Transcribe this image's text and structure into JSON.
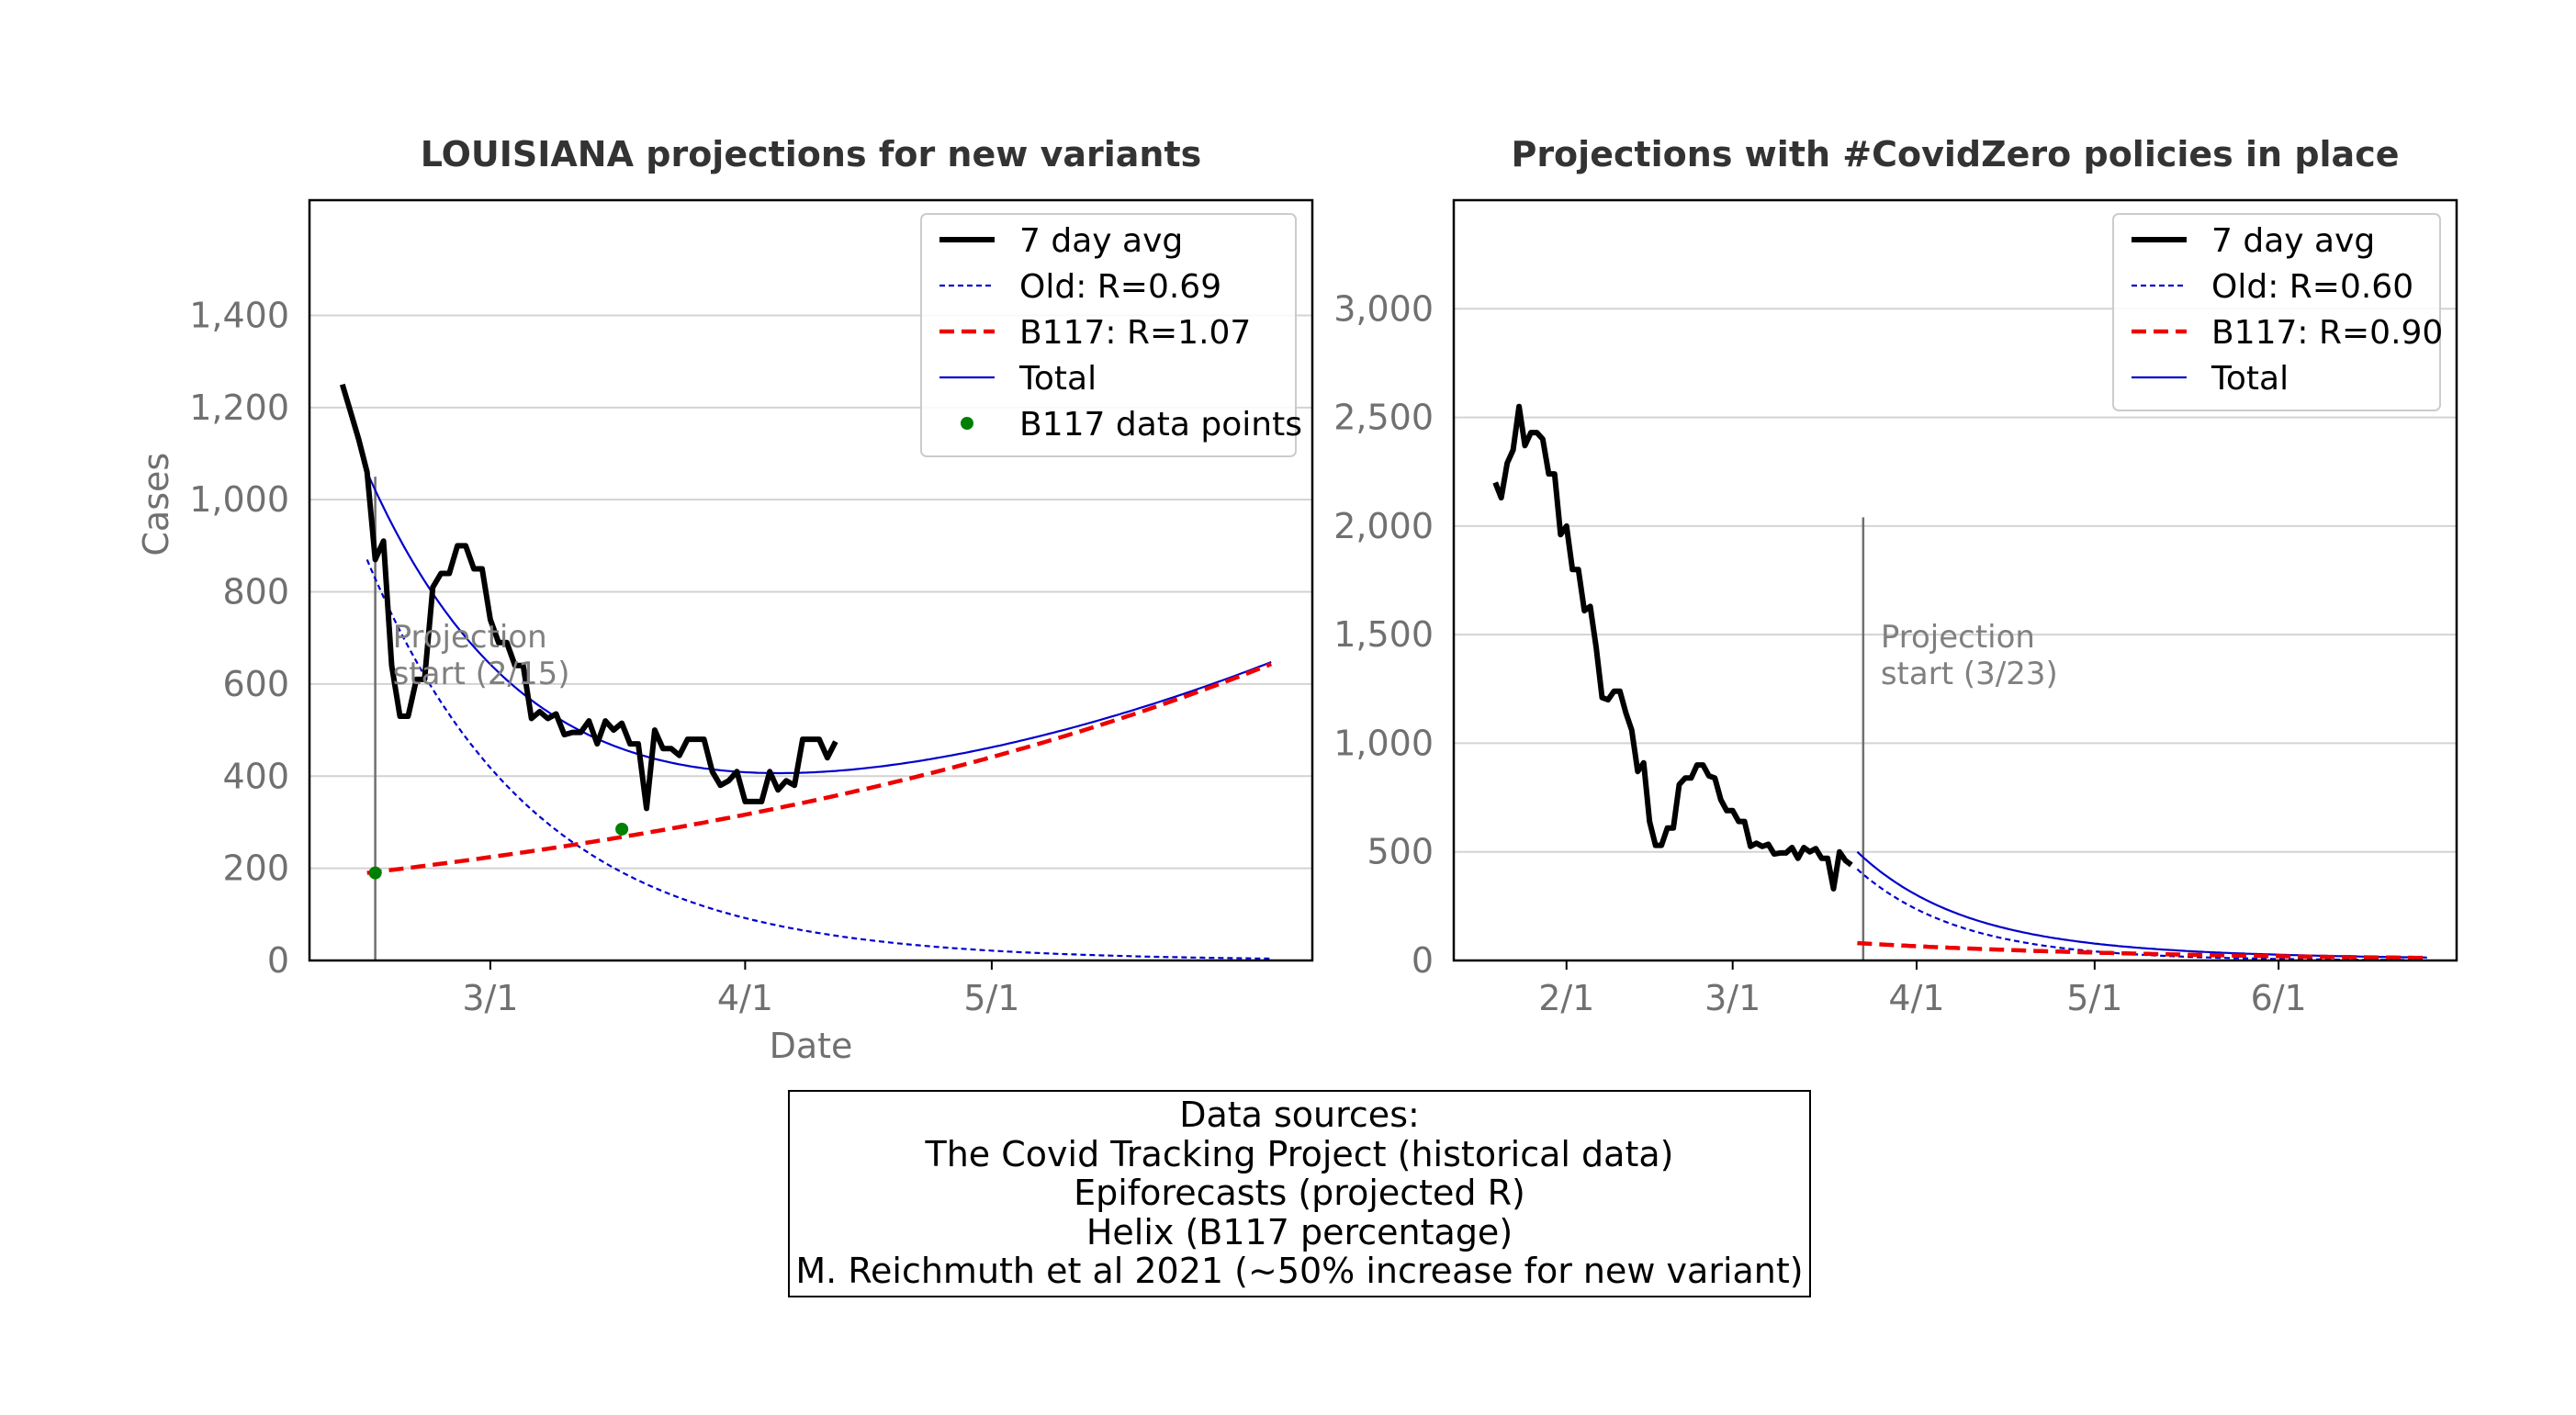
{
  "chart_data": [
    {
      "type": "line",
      "title": "LOUISIANA projections for new variants",
      "xlabel": "Date",
      "ylabel": "Cases",
      "ylim": [
        0,
        1650
      ],
      "yticks": [
        0,
        200,
        400,
        600,
        800,
        1000,
        1200,
        1400
      ],
      "ytick_labels": [
        "0",
        "200",
        "400",
        "600",
        "800",
        "1,000",
        "1,200",
        "1,400"
      ],
      "xlim": [
        "2021-02-07",
        "2021-06-09"
      ],
      "xticks": [
        "2021-03-01",
        "2021-04-01",
        "2021-05-01"
      ],
      "xtick_labels": [
        "3/1",
        "4/1",
        "5/1"
      ],
      "grid": "horizontal",
      "legend_position": "top-right",
      "legend": [
        "7 day avg",
        "Old: R=0.69",
        "B117: R=1.07",
        "Total",
        "B117 data points"
      ],
      "annotation": {
        "text_line1": "Projection",
        "text_line2": "start (2/15)",
        "x": "2021-02-15"
      },
      "series": [
        {
          "name": "7 day avg",
          "color": "#000000",
          "points": [
            [
              "2021-02-11",
              1250
            ],
            [
              "2021-02-12",
              1190
            ],
            [
              "2021-02-13",
              1130
            ],
            [
              "2021-02-14",
              1060
            ],
            [
              "2021-02-15",
              870
            ],
            [
              "2021-02-16",
              910
            ],
            [
              "2021-02-17",
              640
            ],
            [
              "2021-02-18",
              530
            ],
            [
              "2021-02-19",
              530
            ],
            [
              "2021-02-20",
              610
            ],
            [
              "2021-02-21",
              610
            ],
            [
              "2021-02-22",
              810
            ],
            [
              "2021-02-23",
              840
            ],
            [
              "2021-02-24",
              840
            ],
            [
              "2021-02-25",
              900
            ],
            [
              "2021-02-26",
              900
            ],
            [
              "2021-02-27",
              850
            ],
            [
              "2021-02-28",
              850
            ],
            [
              "2021-03-01",
              740
            ],
            [
              "2021-03-02",
              690
            ],
            [
              "2021-03-03",
              690
            ],
            [
              "2021-03-04",
              640
            ],
            [
              "2021-03-05",
              640
            ],
            [
              "2021-03-06",
              525
            ],
            [
              "2021-03-07",
              540
            ],
            [
              "2021-03-08",
              525
            ],
            [
              "2021-03-09",
              535
            ],
            [
              "2021-03-10",
              490
            ],
            [
              "2021-03-11",
              495
            ],
            [
              "2021-03-12",
              495
            ],
            [
              "2021-03-13",
              520
            ],
            [
              "2021-03-14",
              470
            ],
            [
              "2021-03-15",
              520
            ],
            [
              "2021-03-16",
              500
            ],
            [
              "2021-03-17",
              515
            ],
            [
              "2021-03-18",
              470
            ],
            [
              "2021-03-19",
              470
            ],
            [
              "2021-03-20",
              330
            ],
            [
              "2021-03-21",
              500
            ],
            [
              "2021-03-22",
              460
            ],
            [
              "2021-03-23",
              460
            ],
            [
              "2021-03-24",
              445
            ],
            [
              "2021-03-25",
              480
            ],
            [
              "2021-03-26",
              480
            ],
            [
              "2021-03-27",
              480
            ],
            [
              "2021-03-28",
              410
            ],
            [
              "2021-03-29",
              380
            ],
            [
              "2021-03-30",
              390
            ],
            [
              "2021-03-31",
              410
            ],
            [
              "2021-04-01",
              345
            ],
            [
              "2021-04-02",
              345
            ],
            [
              "2021-04-03",
              345
            ],
            [
              "2021-04-04",
              410
            ],
            [
              "2021-04-05",
              370
            ],
            [
              "2021-04-06",
              390
            ],
            [
              "2021-04-07",
              380
            ],
            [
              "2021-04-08",
              480
            ],
            [
              "2021-04-09",
              480
            ],
            [
              "2021-04-10",
              480
            ],
            [
              "2021-04-11",
              440
            ],
            [
              "2021-04-12",
              475
            ]
          ]
        },
        {
          "name": "Old: R=0.69",
          "color": "#0000cc",
          "style": "dotted",
          "model": {
            "start": "2021-02-14",
            "end": "2021-06-04",
            "v0": 870,
            "halflife_days": 14.2
          }
        },
        {
          "name": "B117: R=1.07",
          "color": "#ee0000",
          "style": "dashed",
          "model": {
            "start": "2021-02-14",
            "end": "2021-06-04",
            "v0": 190,
            "doubling_days": 62.5
          }
        },
        {
          "name": "Total",
          "color": "#0000cc",
          "style": "solid",
          "sum_of": [
            "Old: R=0.69",
            "B117: R=1.07"
          ]
        },
        {
          "name": "B117 data points",
          "color": "#008000",
          "style": "points",
          "points": [
            [
              "2021-02-15",
              190
            ],
            [
              "2021-03-17",
              285
            ]
          ]
        }
      ]
    },
    {
      "type": "line",
      "title": "Projections with #CovidZero policies in place",
      "xlabel": "",
      "ylabel": "",
      "ylim": [
        0,
        3500
      ],
      "yticks": [
        0,
        500,
        1000,
        1500,
        2000,
        2500,
        3000
      ],
      "ytick_labels": [
        "0",
        "500",
        "1,000",
        "1,500",
        "2,000",
        "2,500",
        "3,000"
      ],
      "xlim": [
        "2021-01-13",
        "2021-07-01"
      ],
      "xticks": [
        "2021-02-01",
        "2021-03-01",
        "2021-04-01",
        "2021-05-01",
        "2021-06-01"
      ],
      "xtick_labels": [
        "2/1",
        "3/1",
        "4/1",
        "5/1",
        "6/1"
      ],
      "grid": "horizontal",
      "legend_position": "top-right",
      "legend": [
        "7 day avg",
        "Old: R=0.60",
        "B117: R=0.90",
        "Total"
      ],
      "annotation": {
        "text_line1": "Projection",
        "text_line2": "start (3/23)",
        "x": "2021-03-23"
      },
      "series": [
        {
          "name": "7 day avg",
          "color": "#000000",
          "points": [
            [
              "2021-01-20",
              2200
            ],
            [
              "2021-01-21",
              2130
            ],
            [
              "2021-01-22",
              2290
            ],
            [
              "2021-01-23",
              2350
            ],
            [
              "2021-01-24",
              2550
            ],
            [
              "2021-01-25",
              2370
            ],
            [
              "2021-01-26",
              2430
            ],
            [
              "2021-01-27",
              2430
            ],
            [
              "2021-01-28",
              2400
            ],
            [
              "2021-01-29",
              2240
            ],
            [
              "2021-01-30",
              2240
            ],
            [
              "2021-01-31",
              1960
            ],
            [
              "2021-02-01",
              2000
            ],
            [
              "2021-02-02",
              1800
            ],
            [
              "2021-02-03",
              1800
            ],
            [
              "2021-02-04",
              1610
            ],
            [
              "2021-02-05",
              1630
            ],
            [
              "2021-02-06",
              1440
            ],
            [
              "2021-02-07",
              1210
            ],
            [
              "2021-02-08",
              1200
            ],
            [
              "2021-02-09",
              1240
            ],
            [
              "2021-02-10",
              1240
            ],
            [
              "2021-02-11",
              1140
            ],
            [
              "2021-02-12",
              1060
            ],
            [
              "2021-02-13",
              870
            ],
            [
              "2021-02-14",
              910
            ],
            [
              "2021-02-15",
              640
            ],
            [
              "2021-02-16",
              530
            ],
            [
              "2021-02-17",
              530
            ],
            [
              "2021-02-18",
              610
            ],
            [
              "2021-02-19",
              610
            ],
            [
              "2021-02-20",
              810
            ],
            [
              "2021-02-21",
              840
            ],
            [
              "2021-02-22",
              840
            ],
            [
              "2021-02-23",
              900
            ],
            [
              "2021-02-24",
              900
            ],
            [
              "2021-02-25",
              850
            ],
            [
              "2021-02-26",
              840
            ],
            [
              "2021-02-27",
              740
            ],
            [
              "2021-02-28",
              690
            ],
            [
              "2021-03-01",
              690
            ],
            [
              "2021-03-02",
              640
            ],
            [
              "2021-03-03",
              640
            ],
            [
              "2021-03-04",
              525
            ],
            [
              "2021-03-05",
              540
            ],
            [
              "2021-03-06",
              525
            ],
            [
              "2021-03-07",
              535
            ],
            [
              "2021-03-08",
              490
            ],
            [
              "2021-03-09",
              495
            ],
            [
              "2021-03-10",
              495
            ],
            [
              "2021-03-11",
              520
            ],
            [
              "2021-03-12",
              470
            ],
            [
              "2021-03-13",
              520
            ],
            [
              "2021-03-14",
              500
            ],
            [
              "2021-03-15",
              515
            ],
            [
              "2021-03-16",
              470
            ],
            [
              "2021-03-17",
              470
            ],
            [
              "2021-03-18",
              330
            ],
            [
              "2021-03-19",
              500
            ],
            [
              "2021-03-20",
              460
            ],
            [
              "2021-03-21",
              440
            ]
          ]
        },
        {
          "name": "Old: R=0.60",
          "color": "#0000cc",
          "style": "dotted",
          "model": {
            "start": "2021-03-22",
            "end": "2021-06-26",
            "v0": 420,
            "halflife_days": 12
          }
        },
        {
          "name": "B117: R=0.90",
          "color": "#ee0000",
          "style": "dashed",
          "model": {
            "start": "2021-03-22",
            "end": "2021-06-26",
            "v0": 80,
            "halflife_days": 35
          }
        },
        {
          "name": "Total",
          "color": "#0000cc",
          "style": "solid",
          "sum_of": [
            "Old: R=0.60",
            "B117: R=0.90"
          ]
        }
      ]
    }
  ],
  "sources": {
    "line1": "Data sources:",
    "line2": "The Covid Tracking Project (historical data)",
    "line3": "Epiforecasts (projected R)",
    "line4": "Helix (B117 percentage)",
    "line5": "M. Reichmuth et al 2021 (~50% increase for new variant)"
  }
}
